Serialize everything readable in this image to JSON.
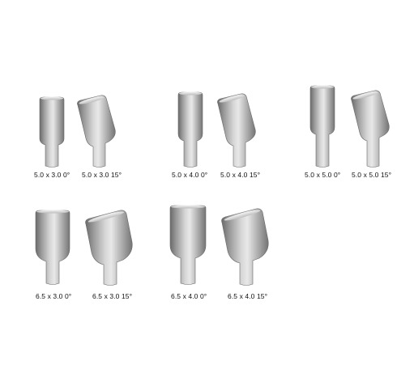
{
  "catalog": {
    "rows": [
      {
        "items": [
          {
            "label": "5.0 x 3.0  0°",
            "diameter": 5.0,
            "height": 3.0,
            "angle": 0
          },
          {
            "label": "5.0 x 3.0  15°",
            "diameter": 5.0,
            "height": 3.0,
            "angle": 15
          },
          {
            "label": "5.0 x 4.0  0°",
            "diameter": 5.0,
            "height": 4.0,
            "angle": 0
          },
          {
            "label": "5.0 x 4.0  15°",
            "diameter": 5.0,
            "height": 4.0,
            "angle": 15
          },
          {
            "label": "5.0 x 5.0  0°",
            "diameter": 5.0,
            "height": 5.0,
            "angle": 0
          },
          {
            "label": "5.0 x 5.0  15°",
            "diameter": 5.0,
            "height": 5.0,
            "angle": 15
          }
        ]
      },
      {
        "items": [
          {
            "label": "6.5 x 3.0  0°",
            "diameter": 6.5,
            "height": 3.0,
            "angle": 0
          },
          {
            "label": "6.5 x 3.0  15°",
            "diameter": 6.5,
            "height": 3.0,
            "angle": 15
          },
          {
            "label": "6.5 x 4.0  0°",
            "diameter": 6.5,
            "height": 4.0,
            "angle": 0
          },
          {
            "label": "6.5 x 4.0  15°",
            "diameter": 6.5,
            "height": 4.0,
            "angle": 15
          }
        ]
      }
    ],
    "colors": {
      "metal_dark": "#6e6e6e",
      "metal_mid": "#b9b9b9",
      "metal_light": "#ececec",
      "label": "#111111"
    }
  }
}
